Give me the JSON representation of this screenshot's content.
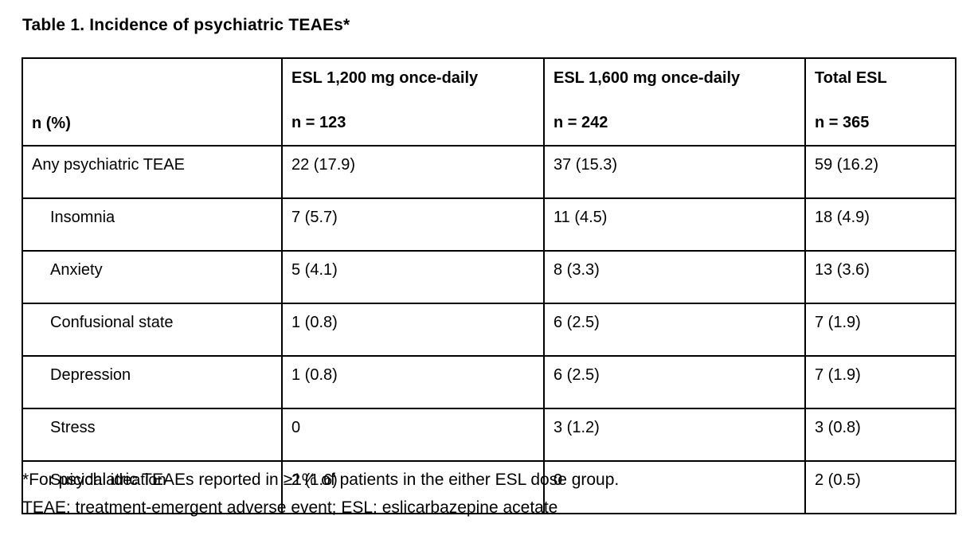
{
  "title": "Table 1. Incidence of psychiatric TEAEs*",
  "table": {
    "header": {
      "row_label": "n (%)",
      "groups": [
        {
          "line1": "ESL 1,200 mg once-daily",
          "line2": "n = 123"
        },
        {
          "line1": "ESL 1,600 mg once-daily",
          "line2": "n = 242"
        },
        {
          "line1": "Total ESL",
          "line2": "n = 365"
        }
      ]
    },
    "rows": [
      {
        "label": "Any psychiatric TEAE",
        "indent": false,
        "values": [
          "22 (17.9)",
          "37 (15.3)",
          "59 (16.2)"
        ]
      },
      {
        "label": "Insomnia",
        "indent": true,
        "values": [
          "7 (5.7)",
          "11 (4.5)",
          "18 (4.9)"
        ]
      },
      {
        "label": "Anxiety",
        "indent": true,
        "values": [
          "5 (4.1)",
          "8 (3.3)",
          "13 (3.6)"
        ]
      },
      {
        "label": "Confusional state",
        "indent": true,
        "values": [
          "1 (0.8)",
          "6 (2.5)",
          "7 (1.9)"
        ]
      },
      {
        "label": "Depression",
        "indent": true,
        "values": [
          "1 (0.8)",
          "6 (2.5)",
          "7 (1.9)"
        ]
      },
      {
        "label": "Stress",
        "indent": true,
        "values": [
          "0",
          "3 (1.2)",
          "3 (0.8)"
        ]
      },
      {
        "label": "Suicidal ideation",
        "indent": true,
        "values": [
          "2 (1.6)",
          "0",
          "2 (0.5)"
        ]
      }
    ]
  },
  "footnotes": {
    "line1": "*For psychiatric TEAEs reported in ≥1% of patients in the either ESL dose group.",
    "line2": "TEAE: treatment-emergent adverse event; ESL: eslicarbazepine acetate"
  },
  "colors": {
    "text": "#000000",
    "border": "#000000",
    "background": "#ffffff"
  }
}
